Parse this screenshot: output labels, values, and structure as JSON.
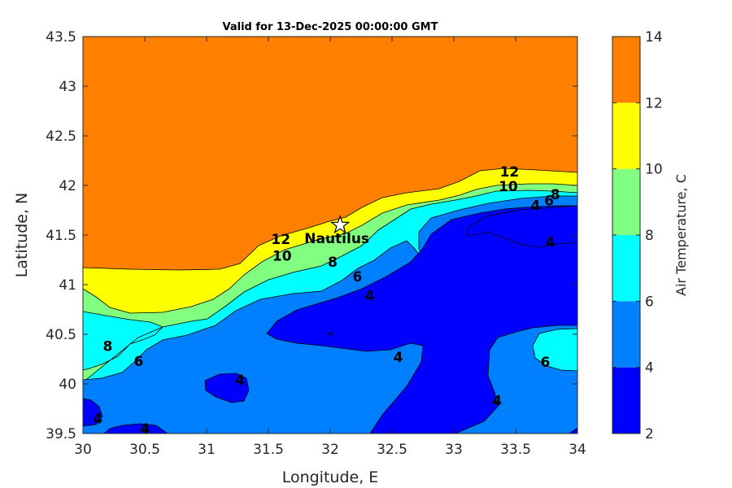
{
  "chart_data": {
    "type": "contour",
    "title": "Valid for 13-Dec-2025 00:00:00 GMT",
    "xlabel": "Longitude, E",
    "ylabel": "Latitude, N",
    "xlim": [
      30,
      34
    ],
    "ylim": [
      39.5,
      43.5
    ],
    "xticks": [
      "30",
      "30.5",
      "31",
      "31.5",
      "32",
      "32.5",
      "33",
      "33.5",
      "34"
    ],
    "yticks": [
      "39.5",
      "40",
      "40.5",
      "41",
      "41.5",
      "42",
      "42.5",
      "43",
      "43.5"
    ],
    "colorbar": {
      "label": "Air Temperature, C",
      "ticks": [
        "2",
        "4",
        "6",
        "8",
        "10",
        "12",
        "14"
      ],
      "levels": [
        2,
        4,
        6,
        8,
        10,
        12,
        14
      ],
      "colors": [
        "#0000ff",
        "#0080ff",
        "#00ffff",
        "#80ff80",
        "#ffff00",
        "#ff8000",
        "#ff0000"
      ]
    },
    "contour_labels": [
      {
        "text": "12",
        "lon": 33.45,
        "lat": 42.14
      },
      {
        "text": "10",
        "lon": 33.44,
        "lat": 41.99
      },
      {
        "text": "8",
        "lon": 33.82,
        "lat": 41.91
      },
      {
        "text": "6",
        "lon": 33.77,
        "lat": 41.85
      },
      {
        "text": "4",
        "lon": 33.66,
        "lat": 41.8
      },
      {
        "text": "4",
        "lon": 33.78,
        "lat": 41.43
      },
      {
        "text": "12",
        "lon": 31.6,
        "lat": 41.46
      },
      {
        "text": "10",
        "lon": 31.61,
        "lat": 41.29
      },
      {
        "text": "8",
        "lon": 32.02,
        "lat": 41.23
      },
      {
        "text": "6",
        "lon": 32.22,
        "lat": 41.08
      },
      {
        "text": "4",
        "lon": 32.32,
        "lat": 40.89
      },
      {
        "text": "8",
        "lon": 30.2,
        "lat": 40.38
      },
      {
        "text": "6",
        "lon": 30.45,
        "lat": 40.23
      },
      {
        "text": "4",
        "lon": 32.55,
        "lat": 40.27
      },
      {
        "text": "4",
        "lon": 31.27,
        "lat": 40.04
      },
      {
        "text": "6",
        "lon": 33.74,
        "lat": 40.22
      },
      {
        "text": "4",
        "lon": 33.35,
        "lat": 39.83
      },
      {
        "text": "4",
        "lon": 30.12,
        "lat": 39.65
      },
      {
        "text": "4",
        "lon": 30.5,
        "lat": 39.55
      }
    ],
    "station": {
      "name": "Nautilus",
      "lon": 32.08,
      "lat": 41.6,
      "marker": "star"
    }
  }
}
